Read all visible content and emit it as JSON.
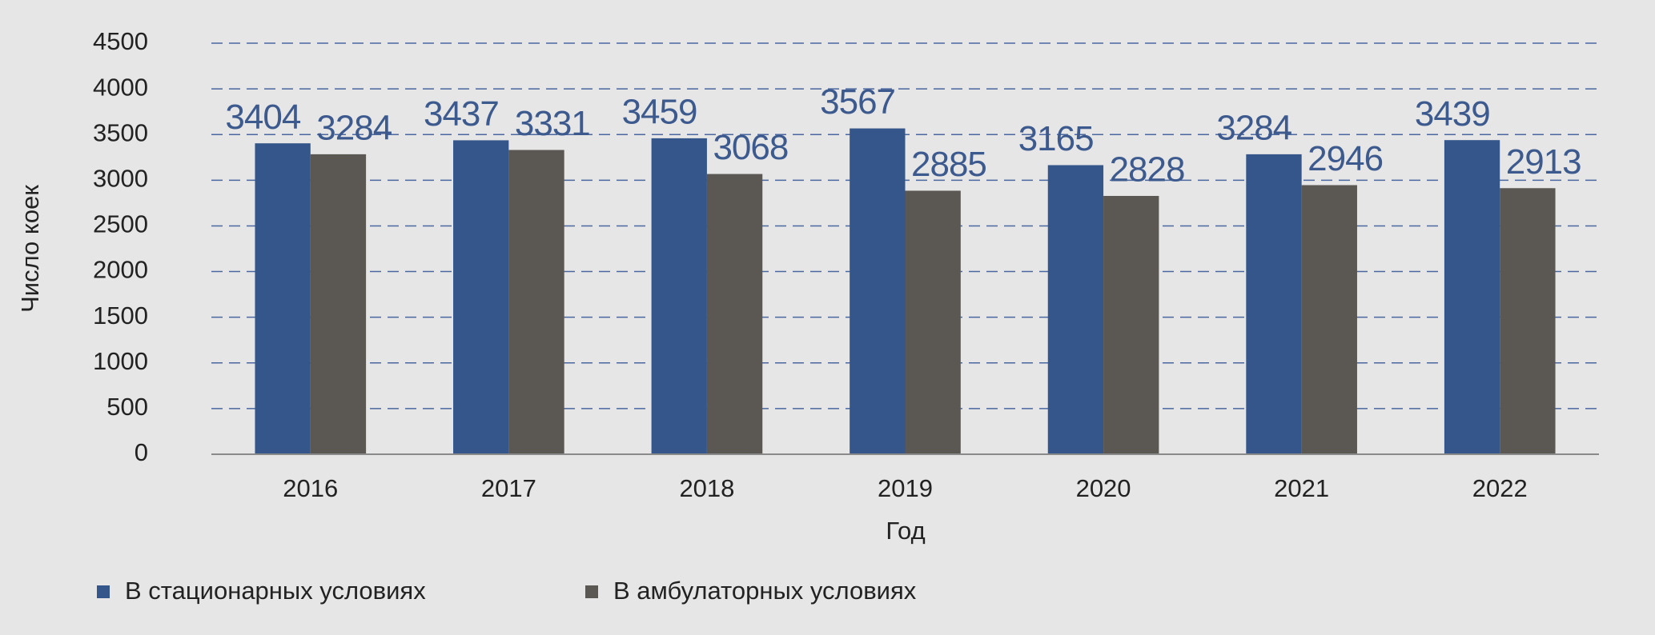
{
  "chart_data": {
    "type": "bar",
    "x_label": "Год",
    "y_label": "Число коек",
    "categories": [
      "2016",
      "2017",
      "2018",
      "2019",
      "2020",
      "2021",
      "2022"
    ],
    "series": [
      {
        "name": "В стационарных условиях",
        "color": "#34568a",
        "values": [
          3404,
          3437,
          3459,
          3567,
          3165,
          3284,
          3439
        ]
      },
      {
        "name": "В амбулаторных условиях",
        "color": "#5b5752",
        "values": [
          3284,
          3331,
          3068,
          2885,
          2828,
          2946,
          2913
        ]
      }
    ],
    "ylim": [
      0,
      4500
    ],
    "yticks": [
      0,
      500,
      1000,
      1500,
      2000,
      2500,
      3000,
      3500,
      4000,
      4500
    ],
    "grid": true,
    "legend": "bottom"
  }
}
